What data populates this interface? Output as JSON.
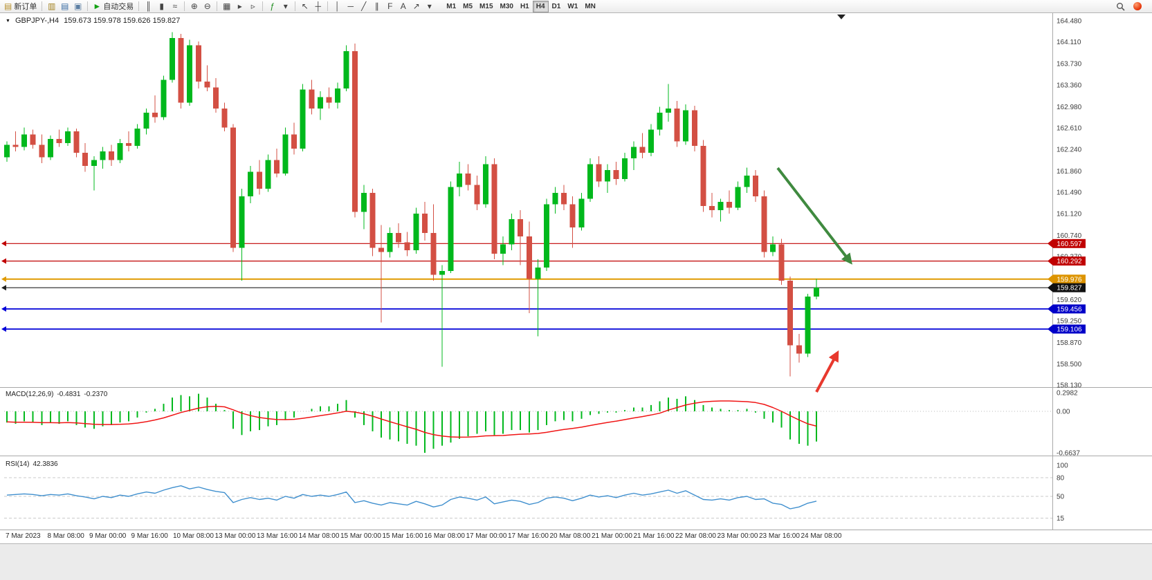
{
  "toolbar": {
    "new_order_label": "新订单",
    "autotrade_label": "自动交易",
    "window_icons": [
      {
        "name": "profiles-icon",
        "glyph": "▥",
        "color": "#a3821f"
      },
      {
        "name": "market-watch-icon",
        "glyph": "▤",
        "color": "#3c6ea5"
      },
      {
        "name": "navigator-icon",
        "glyph": "▣",
        "color": "#5d7fa3"
      }
    ],
    "icon_groups": [
      {
        "group": "chart-type",
        "icons": [
          {
            "name": "bar-chart-icon",
            "glyph": "║",
            "color": "#444444"
          },
          {
            "name": "candlestick-chart-icon",
            "glyph": "▮",
            "color": "#444444"
          },
          {
            "name": "line-chart-icon",
            "glyph": "≈",
            "color": "#444444"
          }
        ]
      },
      {
        "group": "zoom",
        "icons": [
          {
            "name": "zoom-in-icon",
            "glyph": "⊕",
            "color": "#444444"
          },
          {
            "name": "zoom-out-icon",
            "glyph": "⊖",
            "color": "#444444"
          }
        ]
      },
      {
        "group": "arrange",
        "icons": [
          {
            "name": "tile-windows-icon",
            "glyph": "▦",
            "color": "#444444"
          },
          {
            "name": "auto-scroll-icon",
            "glyph": "▸",
            "color": "#444444"
          },
          {
            "name": "chart-shift-icon",
            "glyph": "▹",
            "color": "#444444"
          }
        ]
      },
      {
        "group": "indicators",
        "icons": [
          {
            "name": "indicators-icon",
            "glyph": "ƒ",
            "color": "#1e8e1e"
          },
          {
            "name": "indicators-dropdown-icon",
            "glyph": "▾",
            "color": "#444444"
          }
        ]
      },
      {
        "group": "cursor",
        "icons": [
          {
            "name": "cursor-icon",
            "glyph": "↖",
            "color": "#444444"
          },
          {
            "name": "crosshair-icon",
            "glyph": "┼",
            "color": "#444444"
          }
        ]
      },
      {
        "group": "draw",
        "icons": [
          {
            "name": "vertical-line-icon",
            "glyph": "│",
            "color": "#444444"
          },
          {
            "name": "horizontal-line-icon",
            "glyph": "─",
            "color": "#444444"
          },
          {
            "name": "trendline-icon",
            "glyph": "╱",
            "color": "#444444"
          },
          {
            "name": "channel-icon",
            "glyph": "∥",
            "color": "#444444"
          },
          {
            "name": "fibonacci-icon",
            "glyph": "F",
            "color": "#444444"
          },
          {
            "name": "text-label-icon",
            "glyph": "A",
            "color": "#444444"
          },
          {
            "name": "arrows-tool-icon",
            "glyph": "↗",
            "color": "#444444"
          },
          {
            "name": "shapes-dropdown-icon",
            "glyph": "▾",
            "color": "#444444"
          }
        ]
      }
    ],
    "timeframes": [
      "M1",
      "M5",
      "M15",
      "M30",
      "H1",
      "H4",
      "D1",
      "W1",
      "MN"
    ],
    "active_timeframe": "H4",
    "right_icons": [
      {
        "name": "search-icon"
      },
      {
        "name": "alert-badge-icon"
      }
    ]
  },
  "chart": {
    "title": "GBPJPY-,H4",
    "ohlc": "159.673 159.978 159.626 159.827",
    "colors": {
      "bull": "#00b81c",
      "bear": "#d34f43"
    },
    "price_labels": [
      "164.480",
      "164.110",
      "163.730",
      "163.360",
      "162.980",
      "162.610",
      "162.240",
      "161.860",
      "161.490",
      "161.120",
      "160.740",
      "160.370",
      "159.990",
      "159.620",
      "159.250",
      "158.870",
      "158.500",
      "158.130"
    ],
    "hlines": [
      {
        "price": 160.597,
        "label": "160.597",
        "color": "#c00000",
        "tag": "#c00000",
        "width": 1.2
      },
      {
        "price": 160.292,
        "label": "160.292",
        "color": "#c00000",
        "tag": "#c00000",
        "width": 1.2
      },
      {
        "price": 159.976,
        "label": "159.976",
        "color": "#e09a00",
        "tag": "#dd9400",
        "width": 2
      },
      {
        "price": 159.827,
        "label": "159.827",
        "color": "#202020",
        "tag": "#111111",
        "width": 1.2
      },
      {
        "price": 159.456,
        "label": "159.456",
        "color": "#0000d8",
        "tag": "#0000c8",
        "width": 1.8
      },
      {
        "price": 159.106,
        "label": "159.106",
        "color": "#0000d8",
        "tag": "#0000c8",
        "width": 1.8
      }
    ],
    "time_labels": [
      "7 Mar 2023",
      "8 Mar 08:00",
      "9 Mar 00:00",
      "9 Mar 16:00",
      "10 Mar 08:00",
      "13 Mar 00:00",
      "13 Mar 16:00",
      "14 Mar 08:00",
      "15 Mar 00:00",
      "15 Mar 16:00",
      "16 Mar 08:00",
      "17 Mar 00:00",
      "17 Mar 16:00",
      "20 Mar 08:00",
      "21 Mar 00:00",
      "21 Mar 16:00",
      "22 Mar 08:00",
      "23 Mar 00:00",
      "23 Mar 16:00",
      "24 Mar 08:00"
    ],
    "candles": [
      [
        162.1,
        162.38,
        162.02,
        162.32
      ],
      [
        162.32,
        162.55,
        162.2,
        162.28
      ],
      [
        162.28,
        162.62,
        162.22,
        162.5
      ],
      [
        162.5,
        162.58,
        162.25,
        162.32
      ],
      [
        162.32,
        162.5,
        162.0,
        162.1
      ],
      [
        162.1,
        162.48,
        162.05,
        162.42
      ],
      [
        162.42,
        162.58,
        162.28,
        162.35
      ],
      [
        162.35,
        162.62,
        162.3,
        162.55
      ],
      [
        162.55,
        162.6,
        162.1,
        162.18
      ],
      [
        162.18,
        162.35,
        161.85,
        161.95
      ],
      [
        161.95,
        162.12,
        161.52,
        162.05
      ],
      [
        162.05,
        162.28,
        161.9,
        162.2
      ],
      [
        162.2,
        162.32,
        161.95,
        162.05
      ],
      [
        162.05,
        162.42,
        162.0,
        162.35
      ],
      [
        162.35,
        162.55,
        162.2,
        162.3
      ],
      [
        162.3,
        162.68,
        162.25,
        162.6
      ],
      [
        162.6,
        162.95,
        162.5,
        162.88
      ],
      [
        162.88,
        163.18,
        162.7,
        162.8
      ],
      [
        162.8,
        163.52,
        162.75,
        163.45
      ],
      [
        163.45,
        164.28,
        163.4,
        164.18
      ],
      [
        164.18,
        164.25,
        162.95,
        163.05
      ],
      [
        163.05,
        164.15,
        163.0,
        164.05
      ],
      [
        164.05,
        164.12,
        163.3,
        163.42
      ],
      [
        163.42,
        163.7,
        163.25,
        163.32
      ],
      [
        163.32,
        163.48,
        162.88,
        162.95
      ],
      [
        162.95,
        163.05,
        162.55,
        162.62
      ],
      [
        162.62,
        162.68,
        160.45,
        160.52
      ],
      [
        160.52,
        161.55,
        159.95,
        161.42
      ],
      [
        161.42,
        161.95,
        161.3,
        161.85
      ],
      [
        161.85,
        162.05,
        161.45,
        161.55
      ],
      [
        161.55,
        162.15,
        161.5,
        162.05
      ],
      [
        162.05,
        162.25,
        161.75,
        161.82
      ],
      [
        161.82,
        162.62,
        161.78,
        162.5
      ],
      [
        162.5,
        162.7,
        162.15,
        162.25
      ],
      [
        162.25,
        163.38,
        162.2,
        163.28
      ],
      [
        163.28,
        163.45,
        162.85,
        162.95
      ],
      [
        162.95,
        163.25,
        162.75,
        163.15
      ],
      [
        163.15,
        163.32,
        162.95,
        163.05
      ],
      [
        163.05,
        163.4,
        162.95,
        163.3
      ],
      [
        163.3,
        164.05,
        163.25,
        163.95
      ],
      [
        163.95,
        164.08,
        161.05,
        161.15
      ],
      [
        161.15,
        161.62,
        160.85,
        161.48
      ],
      [
        161.48,
        161.55,
        160.38,
        160.52
      ],
      [
        160.52,
        160.92,
        159.22,
        160.45
      ],
      [
        160.45,
        160.88,
        160.35,
        160.78
      ],
      [
        160.78,
        160.95,
        160.52,
        160.62
      ],
      [
        160.62,
        160.8,
        160.38,
        160.48
      ],
      [
        160.48,
        161.22,
        160.42,
        161.12
      ],
      [
        161.12,
        161.32,
        160.65,
        160.78
      ],
      [
        160.78,
        161.28,
        159.95,
        160.05
      ],
      [
        160.05,
        160.22,
        158.45,
        160.12
      ],
      [
        160.12,
        161.68,
        160.08,
        161.58
      ],
      [
        161.58,
        162.02,
        161.42,
        161.82
      ],
      [
        161.82,
        161.98,
        161.52,
        161.62
      ],
      [
        161.62,
        161.78,
        161.18,
        161.28
      ],
      [
        161.28,
        162.12,
        161.22,
        161.98
      ],
      [
        161.98,
        162.08,
        160.32,
        160.42
      ],
      [
        160.42,
        160.72,
        160.22,
        160.58
      ],
      [
        160.58,
        161.12,
        160.48,
        161.02
      ],
      [
        161.02,
        161.18,
        160.22,
        160.72
      ],
      [
        160.72,
        160.98,
        159.38,
        159.98
      ],
      [
        159.98,
        160.32,
        158.98,
        160.18
      ],
      [
        160.18,
        161.38,
        160.12,
        161.28
      ],
      [
        161.28,
        161.58,
        161.12,
        161.48
      ],
      [
        161.48,
        161.62,
        161.18,
        161.28
      ],
      [
        161.28,
        161.42,
        160.52,
        160.88
      ],
      [
        160.88,
        161.48,
        160.82,
        161.38
      ],
      [
        161.38,
        162.08,
        161.32,
        161.98
      ],
      [
        161.98,
        162.12,
        161.58,
        161.68
      ],
      [
        161.68,
        161.98,
        161.48,
        161.88
      ],
      [
        161.88,
        162.02,
        161.62,
        161.72
      ],
      [
        161.72,
        162.18,
        161.68,
        162.08
      ],
      [
        162.08,
        162.38,
        161.88,
        162.28
      ],
      [
        162.28,
        162.52,
        162.08,
        162.18
      ],
      [
        162.18,
        162.68,
        162.12,
        162.58
      ],
      [
        162.58,
        162.98,
        162.48,
        162.88
      ],
      [
        162.88,
        163.38,
        162.72,
        162.95
      ],
      [
        162.95,
        163.08,
        162.28,
        162.38
      ],
      [
        162.38,
        163.02,
        162.32,
        162.92
      ],
      [
        162.92,
        163.0,
        162.2,
        162.3
      ],
      [
        162.3,
        162.4,
        161.15,
        161.25
      ],
      [
        161.25,
        161.48,
        161.05,
        161.18
      ],
      [
        161.18,
        161.38,
        160.98,
        161.32
      ],
      [
        161.32,
        161.52,
        161.12,
        161.22
      ],
      [
        161.22,
        161.68,
        161.18,
        161.58
      ],
      [
        161.58,
        161.92,
        161.48,
        161.78
      ],
      [
        161.78,
        161.88,
        161.32,
        161.42
      ],
      [
        161.42,
        161.52,
        160.35,
        160.45
      ],
      [
        160.45,
        160.72,
        160.38,
        160.58
      ],
      [
        160.58,
        160.68,
        159.88,
        159.95
      ],
      [
        159.95,
        160.02,
        158.28,
        158.82
      ],
      [
        158.82,
        159.02,
        158.52,
        158.68
      ],
      [
        158.68,
        159.72,
        158.62,
        159.67
      ],
      [
        159.673,
        159.978,
        159.626,
        159.827
      ]
    ],
    "annotations": [
      {
        "name": "downtrend-arrow",
        "color": "#3f8a3f",
        "from": [
          1124,
          224
        ],
        "to": [
          1229,
          360
        ],
        "marker": "ah-green"
      },
      {
        "name": "bounce-arrow",
        "color": "#e8392e",
        "from": [
          1180,
          548
        ],
        "to": [
          1210,
          492
        ],
        "marker": "ah-red"
      }
    ]
  },
  "macd": {
    "name": "MACD(12,26,9)",
    "value": "-0.4831",
    "signal_value": "-0.2370",
    "colors": {
      "histogram": "#00b81c",
      "signal": "#f01414"
    },
    "scale": [
      {
        "label": "0.2982",
        "v": 0.2982
      },
      {
        "label": "0.00",
        "v": 0
      },
      {
        "label": "-0.6637",
        "v": -0.6637
      }
    ],
    "histogram": [
      -0.18,
      -0.2,
      -0.16,
      -0.18,
      -0.22,
      -0.18,
      -0.2,
      -0.16,
      -0.22,
      -0.26,
      -0.28,
      -0.24,
      -0.22,
      -0.18,
      -0.16,
      -0.1,
      -0.02,
      0.04,
      0.12,
      0.22,
      0.26,
      0.24,
      0.28,
      0.22,
      0.12,
      0.02,
      -0.28,
      -0.38,
      -0.32,
      -0.3,
      -0.24,
      -0.22,
      -0.14,
      -0.1,
      0,
      0.04,
      0.08,
      0.08,
      0.12,
      0.18,
      -0.1,
      -0.22,
      -0.32,
      -0.42,
      -0.45,
      -0.48,
      -0.52,
      -0.55,
      -0.6637,
      -0.6,
      -0.55,
      -0.5,
      -0.44,
      -0.4,
      -0.36,
      -0.32,
      -0.38,
      -0.36,
      -0.3,
      -0.3,
      -0.34,
      -0.3,
      -0.22,
      -0.16,
      -0.14,
      -0.16,
      -0.12,
      -0.06,
      -0.04,
      -0.02,
      -0.02,
      0.02,
      0.06,
      0.06,
      0.1,
      0.16,
      0.22,
      0.2,
      0.24,
      0.18,
      0.1,
      0.06,
      0.04,
      0.02,
      0.02,
      0.04,
      -0.02,
      -0.12,
      -0.18,
      -0.26,
      -0.45,
      -0.52,
      -0.55,
      -0.4831
    ],
    "signal": [
      -0.17,
      -0.175,
      -0.175,
      -0.176,
      -0.182,
      -0.182,
      -0.184,
      -0.181,
      -0.186,
      -0.196,
      -0.207,
      -0.211,
      -0.212,
      -0.208,
      -0.202,
      -0.188,
      -0.166,
      -0.139,
      -0.105,
      -0.062,
      -0.019,
      0.015,
      0.05,
      0.073,
      0.079,
      0.071,
      0.024,
      -0.03,
      -0.069,
      -0.1,
      -0.118,
      -0.132,
      -0.133,
      -0.129,
      -0.112,
      -0.092,
      -0.069,
      -0.049,
      -0.026,
      0.001,
      -0.012,
      -0.04,
      -0.078,
      -0.123,
      -0.166,
      -0.207,
      -0.248,
      -0.288,
      -0.338,
      -0.373,
      -0.396,
      -0.41,
      -0.414,
      -0.412,
      -0.405,
      -0.393,
      -0.391,
      -0.387,
      -0.376,
      -0.366,
      -0.362,
      -0.354,
      -0.336,
      -0.313,
      -0.29,
      -0.273,
      -0.253,
      -0.227,
      -0.202,
      -0.178,
      -0.157,
      -0.133,
      -0.107,
      -0.084,
      -0.059,
      -0.03,
      0.02,
      0.06,
      0.1,
      0.13,
      0.15,
      0.16,
      0.165,
      0.165,
      0.16,
      0.155,
      0.14,
      0.11,
      0.06,
      0,
      -0.07,
      -0.14,
      -0.2,
      -0.237
    ]
  },
  "rsi": {
    "name": "RSI(14)",
    "value": "42.3836",
    "color": "#3f8fce",
    "levels": [
      {
        "label": "100",
        "v": 100,
        "line": false
      },
      {
        "label": "80",
        "v": 80,
        "line": true
      },
      {
        "label": "50",
        "v": 50,
        "line": true
      },
      {
        "label": "15",
        "v": 15,
        "line": true
      }
    ],
    "values": [
      52,
      53,
      54,
      53,
      51,
      53,
      52,
      54,
      51,
      49,
      46,
      50,
      48,
      52,
      50,
      54,
      57,
      55,
      60,
      64,
      67,
      62,
      65,
      61,
      58,
      56,
      40,
      45,
      48,
      45,
      47,
      44,
      50,
      47,
      53,
      50,
      52,
      50,
      53,
      57,
      40,
      43,
      39,
      36,
      40,
      38,
      36,
      42,
      38,
      33,
      36,
      45,
      49,
      47,
      44,
      49,
      38,
      41,
      44,
      42,
      37,
      40,
      47,
      49,
      47,
      43,
      47,
      52,
      49,
      51,
      48,
      52,
      55,
      52,
      54,
      57,
      60,
      55,
      59,
      52,
      45,
      44,
      46,
      44,
      48,
      50,
      45,
      46,
      39,
      37,
      30,
      33,
      39,
      42.3836
    ]
  }
}
